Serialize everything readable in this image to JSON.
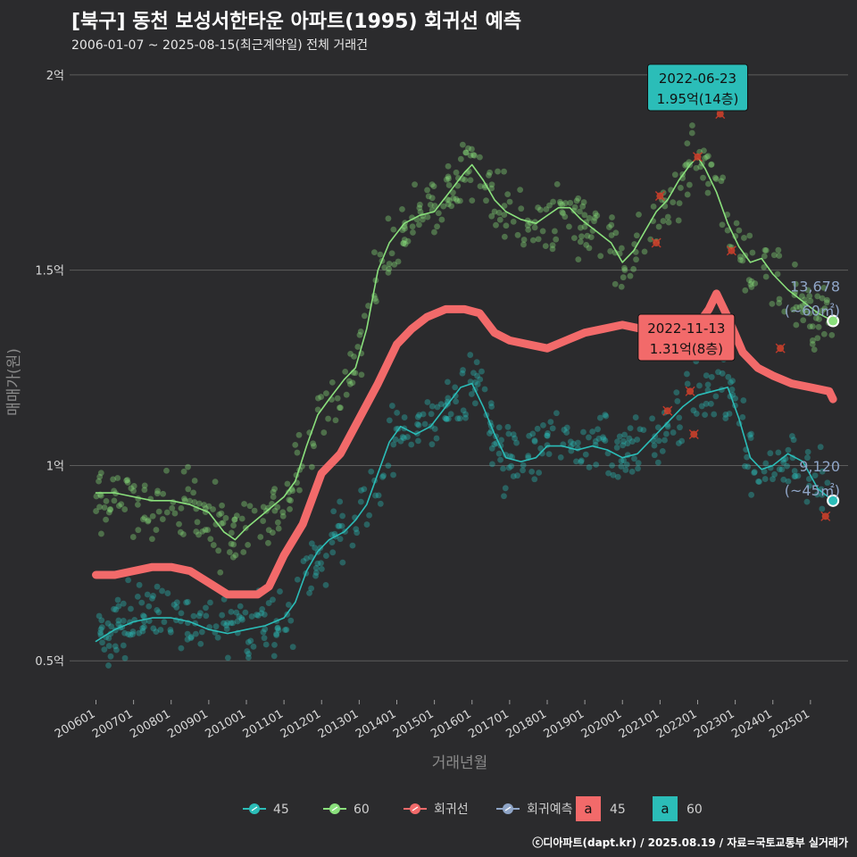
{
  "title": "[북구] 동천 보성서한타운 아파트(1995) 회귀선 예측",
  "subtitle": "2006-01-07 ~ 2025-08-15(최근계약일) 전체 거래건",
  "footer": "ⓒ디아파트(dapt.kr) / 2025.08.19 / 자료=국토교통부 실거래가",
  "colors": {
    "background": "#2b2b2d",
    "s45": "#2bbdb8",
    "s60": "#8ae07c",
    "regression": "#f26a6a",
    "forecast": "#8fa5c7",
    "outlier": "#d9482b",
    "grid": "#5c5c5c"
  },
  "chart_data": {
    "type": "scatter",
    "xlabel": "거래년월",
    "ylabel": "매매가(원)",
    "xlim": [
      "2006-01",
      "2025-08"
    ],
    "ylim": [
      0.4,
      2.05
    ],
    "grid": true,
    "x_ticks": [
      "200601",
      "200701",
      "200801",
      "200901",
      "201001",
      "201101",
      "201201",
      "201301",
      "201401",
      "201501",
      "201601",
      "201701",
      "201801",
      "201901",
      "202001",
      "202101",
      "202201",
      "202301",
      "202401",
      "202501"
    ],
    "y_ticks": [
      {
        "v": 0.5,
        "label": "0.5억"
      },
      {
        "v": 1.0,
        "label": "1억"
      },
      {
        "v": 1.5,
        "label": "1.5억"
      },
      {
        "v": 2.0,
        "label": "2억"
      }
    ],
    "series": [
      {
        "name": "60",
        "key": "s60",
        "trend": [
          [
            2006.0,
            0.93
          ],
          [
            2006.5,
            0.93
          ],
          [
            2007.0,
            0.92
          ],
          [
            2007.5,
            0.91
          ],
          [
            2008.0,
            0.91
          ],
          [
            2008.5,
            0.9
          ],
          [
            2009.0,
            0.88
          ],
          [
            2009.4,
            0.83
          ],
          [
            2009.7,
            0.81
          ],
          [
            2010.0,
            0.84
          ],
          [
            2010.5,
            0.88
          ],
          [
            2011.0,
            0.92
          ],
          [
            2011.3,
            0.96
          ],
          [
            2011.6,
            1.05
          ],
          [
            2011.9,
            1.13
          ],
          [
            2012.2,
            1.17
          ],
          [
            2012.6,
            1.22
          ],
          [
            2012.9,
            1.25
          ],
          [
            2013.2,
            1.35
          ],
          [
            2013.5,
            1.5
          ],
          [
            2013.8,
            1.57
          ],
          [
            2014.2,
            1.62
          ],
          [
            2014.6,
            1.64
          ],
          [
            2015.0,
            1.65
          ],
          [
            2015.4,
            1.7
          ],
          [
            2015.8,
            1.75
          ],
          [
            2016.0,
            1.77
          ],
          [
            2016.3,
            1.73
          ],
          [
            2016.6,
            1.68
          ],
          [
            2016.9,
            1.65
          ],
          [
            2017.3,
            1.63
          ],
          [
            2017.7,
            1.62
          ],
          [
            2018.0,
            1.64
          ],
          [
            2018.3,
            1.66
          ],
          [
            2018.6,
            1.66
          ],
          [
            2018.9,
            1.63
          ],
          [
            2019.3,
            1.6
          ],
          [
            2019.7,
            1.57
          ],
          [
            2020.0,
            1.52
          ],
          [
            2020.3,
            1.55
          ],
          [
            2020.6,
            1.6
          ],
          [
            2020.9,
            1.65
          ],
          [
            2021.2,
            1.68
          ],
          [
            2021.5,
            1.73
          ],
          [
            2021.8,
            1.77
          ],
          [
            2022.0,
            1.79
          ],
          [
            2022.2,
            1.76
          ],
          [
            2022.5,
            1.7
          ],
          [
            2022.8,
            1.62
          ],
          [
            2023.1,
            1.56
          ],
          [
            2023.4,
            1.52
          ],
          [
            2023.7,
            1.53
          ],
          [
            2024.0,
            1.49
          ],
          [
            2024.4,
            1.45
          ],
          [
            2024.8,
            1.42
          ],
          [
            2025.2,
            1.39
          ],
          [
            2025.6,
            1.37
          ]
        ],
        "end_label": "13,678",
        "end_area": "(~60㎡)",
        "end_value": 1.37
      },
      {
        "name": "45",
        "key": "s45",
        "trend": [
          [
            2006.0,
            0.55
          ],
          [
            2006.5,
            0.58
          ],
          [
            2007.0,
            0.6
          ],
          [
            2007.5,
            0.61
          ],
          [
            2008.0,
            0.61
          ],
          [
            2008.5,
            0.6
          ],
          [
            2009.0,
            0.58
          ],
          [
            2009.5,
            0.57
          ],
          [
            2010.0,
            0.58
          ],
          [
            2010.5,
            0.59
          ],
          [
            2011.0,
            0.61
          ],
          [
            2011.3,
            0.65
          ],
          [
            2011.6,
            0.73
          ],
          [
            2011.9,
            0.78
          ],
          [
            2012.2,
            0.81
          ],
          [
            2012.6,
            0.83
          ],
          [
            2012.9,
            0.86
          ],
          [
            2013.2,
            0.9
          ],
          [
            2013.5,
            0.98
          ],
          [
            2013.8,
            1.06
          ],
          [
            2014.1,
            1.1
          ],
          [
            2014.5,
            1.08
          ],
          [
            2014.9,
            1.1
          ],
          [
            2015.3,
            1.15
          ],
          [
            2015.7,
            1.2
          ],
          [
            2016.0,
            1.21
          ],
          [
            2016.3,
            1.15
          ],
          [
            2016.6,
            1.08
          ],
          [
            2016.9,
            1.02
          ],
          [
            2017.3,
            1.01
          ],
          [
            2017.7,
            1.02
          ],
          [
            2018.0,
            1.05
          ],
          [
            2018.4,
            1.05
          ],
          [
            2018.8,
            1.04
          ],
          [
            2019.2,
            1.05
          ],
          [
            2019.6,
            1.04
          ],
          [
            2020.0,
            1.02
          ],
          [
            2020.4,
            1.03
          ],
          [
            2020.8,
            1.07
          ],
          [
            2021.2,
            1.11
          ],
          [
            2021.6,
            1.15
          ],
          [
            2022.0,
            1.18
          ],
          [
            2022.4,
            1.19
          ],
          [
            2022.8,
            1.2
          ],
          [
            2023.1,
            1.12
          ],
          [
            2023.4,
            1.02
          ],
          [
            2023.7,
            0.99
          ],
          [
            2024.0,
            1.0
          ],
          [
            2024.4,
            1.03
          ],
          [
            2024.8,
            1.01
          ],
          [
            2025.2,
            0.94
          ],
          [
            2025.6,
            0.91
          ]
        ],
        "end_label": "9,120",
        "end_area": "(~45㎡)",
        "end_value": 0.91
      },
      {
        "name": "회귀선",
        "key": "regression",
        "trend": [
          [
            2006.0,
            0.72
          ],
          [
            2006.5,
            0.72
          ],
          [
            2007.0,
            0.73
          ],
          [
            2007.5,
            0.74
          ],
          [
            2008.0,
            0.74
          ],
          [
            2008.5,
            0.73
          ],
          [
            2009.0,
            0.7
          ],
          [
            2009.5,
            0.67
          ],
          [
            2010.0,
            0.67
          ],
          [
            2010.3,
            0.67
          ],
          [
            2010.6,
            0.69
          ],
          [
            2011.0,
            0.77
          ],
          [
            2011.5,
            0.85
          ],
          [
            2012.0,
            0.98
          ],
          [
            2012.5,
            1.03
          ],
          [
            2013.0,
            1.12
          ],
          [
            2013.5,
            1.21
          ],
          [
            2014.0,
            1.31
          ],
          [
            2014.4,
            1.35
          ],
          [
            2014.8,
            1.38
          ],
          [
            2015.3,
            1.4
          ],
          [
            2015.8,
            1.4
          ],
          [
            2016.2,
            1.39
          ],
          [
            2016.6,
            1.34
          ],
          [
            2017.0,
            1.32
          ],
          [
            2017.5,
            1.31
          ],
          [
            2018.0,
            1.3
          ],
          [
            2018.5,
            1.32
          ],
          [
            2019.0,
            1.34
          ],
          [
            2019.5,
            1.35
          ],
          [
            2020.0,
            1.36
          ],
          [
            2020.5,
            1.35
          ],
          [
            2021.0,
            1.33
          ],
          [
            2021.5,
            1.33
          ],
          [
            2022.0,
            1.36
          ],
          [
            2022.3,
            1.4
          ],
          [
            2022.5,
            1.44
          ],
          [
            2022.8,
            1.38
          ],
          [
            2023.2,
            1.29
          ],
          [
            2023.6,
            1.25
          ],
          [
            2024.0,
            1.23
          ],
          [
            2024.5,
            1.21
          ],
          [
            2025.0,
            1.2
          ],
          [
            2025.5,
            1.19
          ],
          [
            2025.6,
            1.17
          ]
        ]
      },
      {
        "name": "회귀예측",
        "key": "forecast"
      }
    ],
    "outliers": [
      [
        2021.0,
        1.69
      ],
      [
        2022.0,
        1.79
      ],
      [
        2022.6,
        1.9
      ],
      [
        2020.9,
        1.57
      ],
      [
        2022.9,
        1.55
      ],
      [
        2024.2,
        1.3
      ],
      [
        2021.2,
        1.14
      ],
      [
        2021.8,
        1.19
      ],
      [
        2021.9,
        1.08
      ],
      [
        2025.4,
        0.87
      ]
    ],
    "annotations": [
      {
        "date": "2022-06-23",
        "value_text": "1.95억(14층)",
        "x": 2022.0,
        "y": 1.95,
        "style": "teal"
      },
      {
        "date": "2022-11-13",
        "value_text": "1.31억(8층)",
        "x": 2021.7,
        "y": 1.31,
        "style": "red"
      }
    ],
    "legend": {
      "items": [
        {
          "label": "45",
          "key": "s45"
        },
        {
          "label": "60",
          "key": "s60"
        },
        {
          "label": "회귀선",
          "key": "regression"
        },
        {
          "label": "회귀예측",
          "key": "forecast"
        }
      ],
      "boxes": [
        {
          "glyph": "a",
          "label": "45",
          "key": "regression"
        },
        {
          "glyph": "a",
          "label": "60",
          "key": "s45"
        }
      ],
      "position": "bottom"
    }
  }
}
